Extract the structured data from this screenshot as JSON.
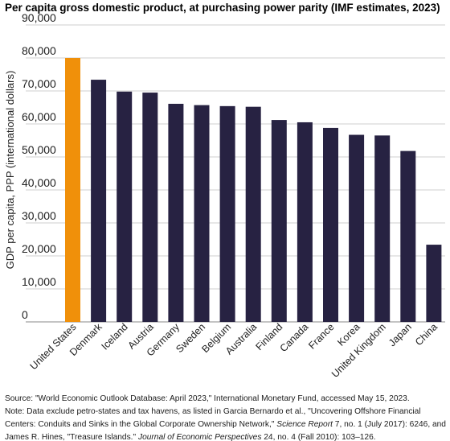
{
  "chart_data": {
    "type": "bar",
    "title": "Per capita gross domestic product, at purchasing power parity (IMF estimates, 2023)",
    "ylabel": "GDP per capita, PPP (international dollars)",
    "xlabel": "",
    "ylim": [
      0,
      90000
    ],
    "yticks": [
      0,
      10000,
      20000,
      30000,
      40000,
      50000,
      60000,
      70000,
      80000,
      90000
    ],
    "ytick_labels": [
      "0",
      "10,000",
      "20,000",
      "30,000",
      "40,000",
      "50,000",
      "60,000",
      "70,000",
      "80,000",
      "90,000"
    ],
    "grid": true,
    "categories": [
      "United States",
      "Denmark",
      "Iceland",
      "Austria",
      "Germany",
      "Sweden",
      "Belgium",
      "Australia",
      "Finland",
      "Canada",
      "France",
      "Korea",
      "United Kingdom",
      "Japan",
      "China"
    ],
    "values": [
      80000,
      73400,
      69800,
      69500,
      66100,
      65700,
      65400,
      65200,
      61200,
      60500,
      58800,
      56700,
      56500,
      51800,
      23400
    ],
    "colors": {
      "highlight": "#f0900a",
      "bar": "#272242",
      "grid": "#cfcfcf"
    }
  },
  "footnote": {
    "source": "Source: \"World Economic Outlook Database: April 2023,\" International Monetary Fund, accessed May 15, 2023.",
    "note_a": "Note: Data exclude petro-states and tax havens, as listed in Garcia Bernardo et al., \"Uncovering Offshore Financial Centers: Conduits and Sinks in the Global Corporate Ownership Network,\"",
    "note_journal_1": "Science Report",
    "note_b": "7, no. 1 (July 2017): 6246, and James R. Hines, \"Treasure Islands.\"",
    "note_journal_2": "Journal of Economic Perspectives",
    "note_c": "24, no. 4 (Fall 2010): 103–126."
  }
}
